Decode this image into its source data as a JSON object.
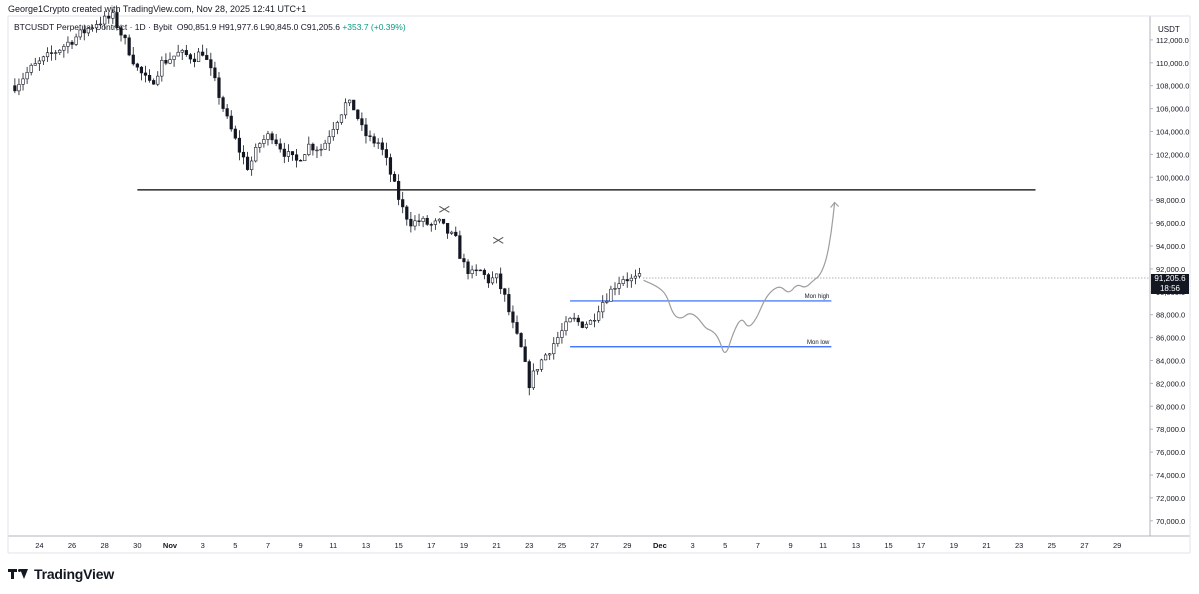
{
  "header": {
    "credit": "George1Crypto created with TradingView.com, Nov 28, 2025 12:41 UTC+1"
  },
  "legend": {
    "symbol": "BTCUSDT Perpetual Contract · 1D · Bybit",
    "open": "O90,851.9",
    "high": "H91,977.6",
    "low": "L90,845.0",
    "close": "C91,205.6",
    "change": "+353.7 (+0.39%)"
  },
  "brand": {
    "name": "TradingView"
  },
  "price_tag": {
    "price": "91,205.6",
    "countdown": "18:56"
  },
  "colors": {
    "up": "#131722",
    "down": "#131722",
    "level_line": "#2962ff",
    "support_line": "#000000",
    "projection": "#9e9e9e",
    "tag_bg": "#131722"
  },
  "chart_data": {
    "type": "candlestick",
    "y_axis_unit": "USDT",
    "ylim": [
      68000,
      114000
    ],
    "y_ticks": [
      70000,
      72000,
      74000,
      76000,
      78000,
      80000,
      82000,
      84000,
      86000,
      88000,
      90000,
      92000,
      94000,
      96000,
      98000,
      100000,
      102000,
      104000,
      106000,
      108000,
      110000,
      112000
    ],
    "y_tick_labels": [
      "70,000.0",
      "72,000.0",
      "74,000.0",
      "76,000.0",
      "78,000.0",
      "80,000.0",
      "82,000.0",
      "84,000.0",
      "86,000.0",
      "88,000.0",
      "90,000.0",
      "92,000.0",
      "94,000.0",
      "96,000.0",
      "98,000.0",
      "100,000.0",
      "102,000.0",
      "104,000.0",
      "106,000.0",
      "108,000.0",
      "110,000.0",
      "112,000.0"
    ],
    "x_ticks": [
      {
        "day": -8,
        "label": "24"
      },
      {
        "day": -6,
        "label": "26"
      },
      {
        "day": -4,
        "label": "28"
      },
      {
        "day": -2,
        "label": "30"
      },
      {
        "day": 0,
        "label": "Nov"
      },
      {
        "day": 2,
        "label": "3"
      },
      {
        "day": 4,
        "label": "5"
      },
      {
        "day": 6,
        "label": "7"
      },
      {
        "day": 8,
        "label": "9"
      },
      {
        "day": 10,
        "label": "11"
      },
      {
        "day": 12,
        "label": "13"
      },
      {
        "day": 14,
        "label": "15"
      },
      {
        "day": 16,
        "label": "17"
      },
      {
        "day": 18,
        "label": "19"
      },
      {
        "day": 20,
        "label": "21"
      },
      {
        "day": 22,
        "label": "23"
      },
      {
        "day": 24,
        "label": "25"
      },
      {
        "day": 26,
        "label": "27"
      },
      {
        "day": 28,
        "label": "29"
      },
      {
        "day": 30,
        "label": "Dec"
      },
      {
        "day": 32,
        "label": "3"
      },
      {
        "day": 34,
        "label": "5"
      },
      {
        "day": 36,
        "label": "7"
      },
      {
        "day": 38,
        "label": "9"
      },
      {
        "day": 40,
        "label": "11"
      },
      {
        "day": 42,
        "label": "13"
      },
      {
        "day": 44,
        "label": "15"
      },
      {
        "day": 46,
        "label": "17"
      },
      {
        "day": 48,
        "label": "19"
      },
      {
        "day": 50,
        "label": "21"
      },
      {
        "day": 52,
        "label": "23"
      },
      {
        "day": 54,
        "label": "25"
      },
      {
        "day": 56,
        "label": "27"
      },
      {
        "day": 58,
        "label": "29"
      }
    ],
    "key_points": [
      [
        -9.5,
        108000
      ],
      [
        -8.5,
        109500
      ],
      [
        -7.5,
        110500
      ],
      [
        -6.5,
        111500
      ],
      [
        -5.5,
        112500
      ],
      [
        -4.5,
        113500
      ],
      [
        -3.5,
        114000
      ],
      [
        -2.8,
        112000
      ],
      [
        -2.0,
        109500
      ],
      [
        -1.2,
        108000
      ],
      [
        -0.5,
        110000
      ],
      [
        0.5,
        110800
      ],
      [
        1.5,
        110500
      ],
      [
        2.0,
        111000
      ],
      [
        2.7,
        108500
      ],
      [
        3.5,
        105000
      ],
      [
        4.2,
        102500
      ],
      [
        4.8,
        100800
      ],
      [
        5.5,
        103000
      ],
      [
        6.2,
        103800
      ],
      [
        7.0,
        102200
      ],
      [
        7.7,
        101300
      ],
      [
        8.5,
        102800
      ],
      [
        9.3,
        102500
      ],
      [
        10.0,
        104500
      ],
      [
        10.8,
        106500
      ],
      [
        11.3,
        106000
      ],
      [
        11.8,
        104000
      ],
      [
        12.3,
        103200
      ],
      [
        12.8,
        103000
      ],
      [
        13.3,
        101200
      ],
      [
        13.8,
        99000
      ],
      [
        14.3,
        97000
      ],
      [
        14.8,
        96000
      ],
      [
        15.3,
        96200
      ],
      [
        16.0,
        95800
      ],
      [
        16.5,
        96000
      ],
      [
        17.0,
        95200
      ],
      [
        17.5,
        94500
      ],
      [
        17.9,
        92500
      ],
      [
        18.5,
        91500
      ],
      [
        19.0,
        91800
      ],
      [
        19.5,
        91000
      ],
      [
        20.0,
        91200
      ],
      [
        20.5,
        89500
      ],
      [
        21.0,
        87000
      ],
      [
        21.5,
        85000
      ],
      [
        22.0,
        82000
      ],
      [
        22.5,
        83500
      ],
      [
        23.0,
        84500
      ],
      [
        23.5,
        85500
      ],
      [
        24.0,
        86500
      ],
      [
        24.6,
        87600
      ],
      [
        25.2,
        87200
      ],
      [
        25.8,
        87400
      ],
      [
        26.3,
        88800
      ],
      [
        26.8,
        89700
      ],
      [
        27.3,
        90700
      ],
      [
        27.8,
        91300
      ],
      [
        28.3,
        91000
      ],
      [
        28.8,
        91200
      ]
    ],
    "support_level": {
      "price": 98900,
      "from_day": -2.0,
      "to_day": 53.0
    },
    "mon_high": {
      "price": 89200,
      "from_day": 24.5,
      "to_day": 40.5,
      "label": "Mon high"
    },
    "mon_low": {
      "price": 85200,
      "from_day": 24.5,
      "to_day": 40.5,
      "label": "Mon low"
    },
    "x_markers": [
      {
        "day": 16.8,
        "price": 97200
      },
      {
        "day": 20.1,
        "price": 94500
      }
    ],
    "projection": [
      [
        29.0,
        91000
      ],
      [
        29.8,
        90500
      ],
      [
        30.4,
        89800
      ],
      [
        30.8,
        88000
      ],
      [
        31.3,
        87600
      ],
      [
        31.8,
        88200
      ],
      [
        32.3,
        87800
      ],
      [
        32.8,
        86800
      ],
      [
        33.2,
        86600
      ],
      [
        33.6,
        86000
      ],
      [
        34.0,
        84200
      ],
      [
        34.5,
        86500
      ],
      [
        35.0,
        87800
      ],
      [
        35.4,
        86800
      ],
      [
        35.9,
        87600
      ],
      [
        36.4,
        89300
      ],
      [
        36.9,
        90200
      ],
      [
        37.4,
        90500
      ],
      [
        37.9,
        89800
      ],
      [
        38.4,
        90700
      ],
      [
        38.9,
        90300
      ],
      [
        39.4,
        91000
      ],
      [
        39.8,
        91400
      ],
      [
        40.2,
        92800
      ],
      [
        40.5,
        95200
      ],
      [
        40.7,
        97800
      ]
    ]
  }
}
